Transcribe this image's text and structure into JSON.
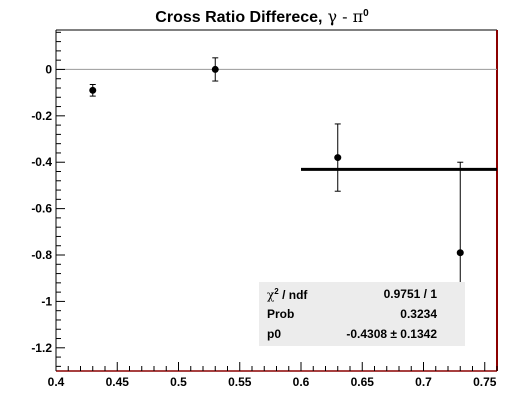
{
  "chart_data": {
    "type": "scatter",
    "title": "Cross Ratio Differece,",
    "title_symbols": "γ - π",
    "title_superscript": "0",
    "xlim": [
      0.4,
      0.76
    ],
    "ylim": [
      -1.3,
      0.17
    ],
    "x_ticks": [
      "0.4",
      "0.45",
      "0.5",
      "0.55",
      "0.6",
      "0.65",
      "0.7",
      "0.75"
    ],
    "x_tick_values": [
      0.4,
      0.45,
      0.5,
      0.55,
      0.6,
      0.65,
      0.7,
      0.75
    ],
    "y_ticks": [
      "0",
      "-0.2",
      "-0.4",
      "-0.6",
      "-0.8",
      "-1",
      "-1.2"
    ],
    "y_tick_values": [
      0,
      -0.2,
      -0.4,
      -0.6,
      -0.8,
      -1.0,
      -1.2
    ],
    "zero_line": true,
    "grid": false,
    "points": [
      {
        "x": 0.43,
        "y": -0.09,
        "err_low": 0.025,
        "err_high": 0.025
      },
      {
        "x": 0.53,
        "y": 0.0,
        "err_low": 0.05,
        "err_high": 0.05
      },
      {
        "x": 0.63,
        "y": -0.38,
        "err_low": 0.145,
        "err_high": 0.145
      },
      {
        "x": 0.73,
        "y": -0.79,
        "err_low": 0.39,
        "err_high": 0.39
      }
    ],
    "fit": {
      "function": "p0",
      "value": -0.4308,
      "x_from": 0.6,
      "x_to": 0.76
    }
  },
  "stats": {
    "rows": [
      {
        "key": "ndf",
        "value": "0.9751 / 1"
      },
      {
        "key": "Prob",
        "value": "0.3234"
      },
      {
        "key": "p0",
        "value": "-0.4308 ± 0.1342"
      }
    ],
    "chi_symbol": "χ",
    "chi_power": "2",
    "chi_sep": " / "
  },
  "colors": {
    "frame": "#000000",
    "right_axis": "#8b0000",
    "zero_line": "#999999",
    "stats_bg": "#ececec",
    "markers": "#000000"
  }
}
